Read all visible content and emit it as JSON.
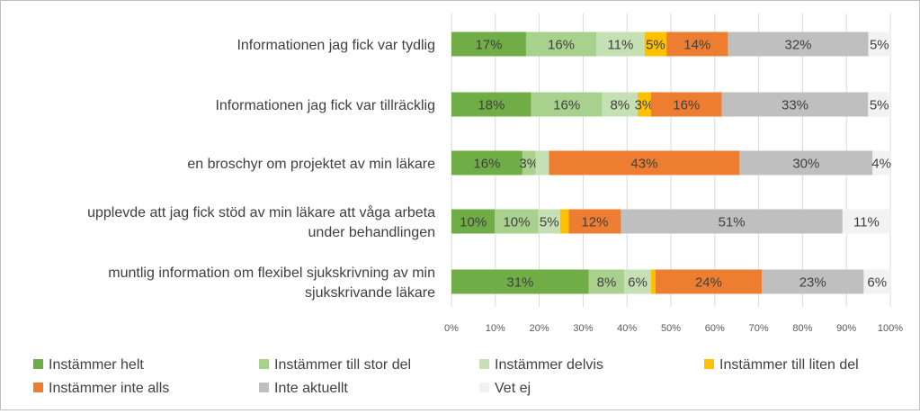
{
  "chart_data": {
    "type": "bar",
    "orientation": "horizontal",
    "stacked": "percent",
    "categories": [
      [
        "Informationen jag fick var tydlig"
      ],
      [
        "Informationen jag fick var tillräcklig"
      ],
      [
        "en broschyr om projektet av min läkare"
      ],
      [
        "upplevde att jag fick stöd av min läkare att våga arbeta",
        "under behandlingen"
      ],
      [
        "muntlig information om flexibel sjukskrivning av min",
        "sjukskrivande läkare"
      ]
    ],
    "series": [
      {
        "name": "Instämmer helt",
        "color": "#70ad47",
        "values": [
          17,
          18,
          16,
          10,
          31
        ]
      },
      {
        "name": "Instämmer till stor del",
        "color": "#a9d18e",
        "values": [
          16,
          16,
          3,
          10,
          8
        ]
      },
      {
        "name": "Instämmer delvis",
        "color": "#c5e0b4",
        "values": [
          11,
          8,
          3,
          5,
          6
        ]
      },
      {
        "name": "Instämmer till liten del",
        "color": "#ffc000",
        "values": [
          5,
          3,
          0,
          2,
          1
        ]
      },
      {
        "name": "Instämmer inte alls",
        "color": "#ed7d31",
        "values": [
          14,
          16,
          43,
          12,
          24
        ]
      },
      {
        "name": "Inte aktuellt",
        "color": "#bfbfbf",
        "values": [
          32,
          33,
          30,
          51,
          23
        ]
      },
      {
        "name": "Vet ej",
        "color": "#f2f2f2",
        "values": [
          5,
          5,
          4,
          11,
          6
        ]
      }
    ],
    "data_labels": [
      [
        "17%",
        "16%",
        "11%",
        "5%",
        "14%",
        "32%",
        "5%"
      ],
      [
        "18%",
        "16%",
        "8%",
        "3%",
        "16%",
        "33%",
        "5%"
      ],
      [
        "16%",
        "3%",
        "",
        "",
        "43%",
        "30%",
        "4%"
      ],
      [
        "10%",
        "10%",
        "5%",
        "",
        "12%",
        "51%",
        "11%"
      ],
      [
        "31%",
        "8%",
        "6%",
        "",
        "24%",
        "23%",
        "6%"
      ]
    ],
    "x_ticks": [
      "0%",
      "10%",
      "20%",
      "30%",
      "40%",
      "50%",
      "60%",
      "70%",
      "80%",
      "90%",
      "100%"
    ],
    "xlim": [
      0,
      100
    ],
    "grid": true,
    "legend_position": "bottom"
  }
}
